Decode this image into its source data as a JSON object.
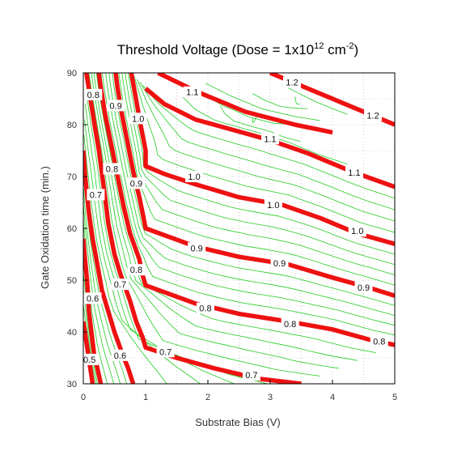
{
  "chart_data": {
    "type": "contour",
    "title": {
      "main": "Threshold Voltage (Dose = 1x10",
      "exp1": "12",
      "mid": " cm",
      "exp2": "-2",
      "end": ")"
    },
    "xlabel": "Substrate Bias (V)",
    "ylabel": "Gate Oxidation time (min.)",
    "xlim": [
      0,
      5
    ],
    "ylim": [
      30,
      90
    ],
    "xticks": [
      0,
      1,
      2,
      3,
      4,
      5
    ],
    "yticks": [
      30,
      40,
      50,
      60,
      70,
      80,
      90
    ],
    "colors": {
      "major": "#ee1111",
      "minor": "#22cc22",
      "grid": "#aaaaaa",
      "frame": "#000000",
      "label_bg": "#ffffff"
    },
    "major_contours": [
      {
        "level": "0.5",
        "points": [
          [
            0.15,
            30
          ],
          [
            0.02,
            40.5
          ],
          [
            0,
            42
          ]
        ]
      },
      {
        "level": "0.6",
        "points": [
          [
            0.28,
            30
          ],
          [
            0.17,
            36
          ],
          [
            0.09,
            44
          ],
          [
            0.06,
            50
          ],
          [
            0.02,
            55
          ],
          [
            0,
            58
          ]
        ]
      },
      {
        "level": "0.6",
        "points": [
          [
            0.8,
            30
          ],
          [
            0.72,
            33
          ],
          [
            0.62,
            36
          ],
          [
            0.5,
            40
          ],
          [
            0.4,
            44
          ],
          [
            0.3,
            48
          ],
          [
            0.24,
            52
          ],
          [
            0.15,
            58
          ],
          [
            0.09,
            63
          ],
          [
            0.03,
            70
          ],
          [
            0,
            75
          ]
        ]
      },
      {
        "level": "0.7",
        "points": [
          [
            3.5,
            30
          ],
          [
            2.8,
            31
          ],
          [
            2.1,
            33
          ],
          [
            1.5,
            35
          ],
          [
            1.0,
            37
          ],
          [
            0.95,
            39
          ],
          [
            0.85,
            42
          ],
          [
            0.75,
            46
          ],
          [
            0.6,
            51
          ],
          [
            0.5,
            55
          ],
          [
            0.4,
            61
          ],
          [
            0.36,
            65
          ],
          [
            0.25,
            75
          ],
          [
            0.18,
            80
          ],
          [
            0.1,
            86
          ],
          [
            0.05,
            90
          ]
        ]
      },
      {
        "level": "0.8",
        "points": [
          [
            5,
            37.5
          ],
          [
            4.6,
            38.5
          ],
          [
            4.0,
            40.5
          ],
          [
            3.3,
            42
          ],
          [
            2.5,
            43.5
          ],
          [
            1.8,
            45.5
          ],
          [
            1.0,
            49
          ],
          [
            0.95,
            51
          ],
          [
            0.9,
            54
          ],
          [
            0.75,
            59
          ],
          [
            0.65,
            64
          ],
          [
            0.55,
            70
          ],
          [
            0.45,
            76
          ],
          [
            0.35,
            82
          ],
          [
            0.27,
            88
          ],
          [
            0.25,
            90
          ]
        ]
      },
      {
        "level": "0.9",
        "points": [
          [
            5,
            47
          ],
          [
            4.6,
            48.5
          ],
          [
            4.0,
            50.5
          ],
          [
            3.3,
            53
          ],
          [
            2.5,
            54.5
          ],
          [
            1.8,
            56.5
          ],
          [
            1.0,
            60
          ],
          [
            0.95,
            63
          ],
          [
            0.9,
            66
          ],
          [
            0.8,
            71
          ],
          [
            0.72,
            76
          ],
          [
            0.62,
            82
          ],
          [
            0.55,
            87
          ],
          [
            0.52,
            90
          ]
        ]
      },
      {
        "level": "1.0",
        "points": [
          [
            5,
            57
          ],
          [
            4.4,
            59
          ],
          [
            3.8,
            62
          ],
          [
            3.2,
            64.5
          ],
          [
            2.5,
            66
          ],
          [
            1.8,
            68.5
          ],
          [
            1.3,
            70.5
          ],
          [
            1.0,
            72
          ],
          [
            1.0,
            75
          ],
          [
            0.92,
            80
          ],
          [
            0.86,
            84
          ],
          [
            0.8,
            88
          ],
          [
            0.77,
            90
          ]
        ]
      },
      {
        "level": "1.1",
        "points": [
          [
            5,
            68
          ],
          [
            4.3,
            71
          ],
          [
            3.6,
            74.5
          ],
          [
            3.0,
            77
          ],
          [
            2.4,
            79
          ],
          [
            1.8,
            81
          ],
          [
            1.3,
            84
          ],
          [
            1.1,
            86
          ],
          [
            1.0,
            87
          ]
        ]
      },
      {
        "level": "1.1",
        "points": [
          [
            1.2,
            90
          ],
          [
            1.8,
            86.5
          ],
          [
            2.6,
            82.5
          ],
          [
            3.4,
            80
          ],
          [
            4.0,
            78.5
          ]
        ]
      },
      {
        "level": "1.2",
        "points": [
          [
            5,
            80
          ],
          [
            4.4,
            83
          ],
          [
            3.8,
            86
          ],
          [
            3.3,
            88.5
          ],
          [
            3.0,
            90
          ]
        ]
      }
    ],
    "contour_labels": [
      {
        "text": "0.5",
        "x": 0.1,
        "y": 34.7
      },
      {
        "text": "0.6",
        "x": 0.15,
        "y": 46.5
      },
      {
        "text": "0.7",
        "x": 0.2,
        "y": 66.5
      },
      {
        "text": "0.8",
        "x": 0.16,
        "y": 85.8
      },
      {
        "text": "0.6",
        "x": 0.59,
        "y": 35.5
      },
      {
        "text": "0.7",
        "x": 0.59,
        "y": 49.2
      },
      {
        "text": "0.8",
        "x": 0.46,
        "y": 71.5
      },
      {
        "text": "0.9",
        "x": 0.52,
        "y": 83.7
      },
      {
        "text": "0.8",
        "x": 0.85,
        "y": 52
      },
      {
        "text": "0.9",
        "x": 0.85,
        "y": 68.7
      },
      {
        "text": "1.0",
        "x": 0.88,
        "y": 81.2
      },
      {
        "text": "0.7",
        "x": 1.32,
        "y": 36.2
      },
      {
        "text": "0.7",
        "x": 2.7,
        "y": 31.7
      },
      {
        "text": "0.8",
        "x": 1.96,
        "y": 44.6
      },
      {
        "text": "0.8",
        "x": 3.32,
        "y": 41.6
      },
      {
        "text": "0.8",
        "x": 4.75,
        "y": 38.2
      },
      {
        "text": "0.9",
        "x": 1.82,
        "y": 56.2
      },
      {
        "text": "0.9",
        "x": 3.15,
        "y": 53.3
      },
      {
        "text": "0.9",
        "x": 4.5,
        "y": 48.6
      },
      {
        "text": "1.0",
        "x": 1.78,
        "y": 70
      },
      {
        "text": "1.0",
        "x": 3.05,
        "y": 64.5
      },
      {
        "text": "1.0",
        "x": 4.4,
        "y": 59.5
      },
      {
        "text": "1.1",
        "x": 1.75,
        "y": 86.3
      },
      {
        "text": "1.1",
        "x": 3.0,
        "y": 77.3
      },
      {
        "text": "1.1",
        "x": 4.35,
        "y": 70.8
      },
      {
        "text": "1.2",
        "x": 3.35,
        "y": 88.2
      },
      {
        "text": "1.2",
        "x": 4.65,
        "y": 81.8
      }
    ]
  }
}
